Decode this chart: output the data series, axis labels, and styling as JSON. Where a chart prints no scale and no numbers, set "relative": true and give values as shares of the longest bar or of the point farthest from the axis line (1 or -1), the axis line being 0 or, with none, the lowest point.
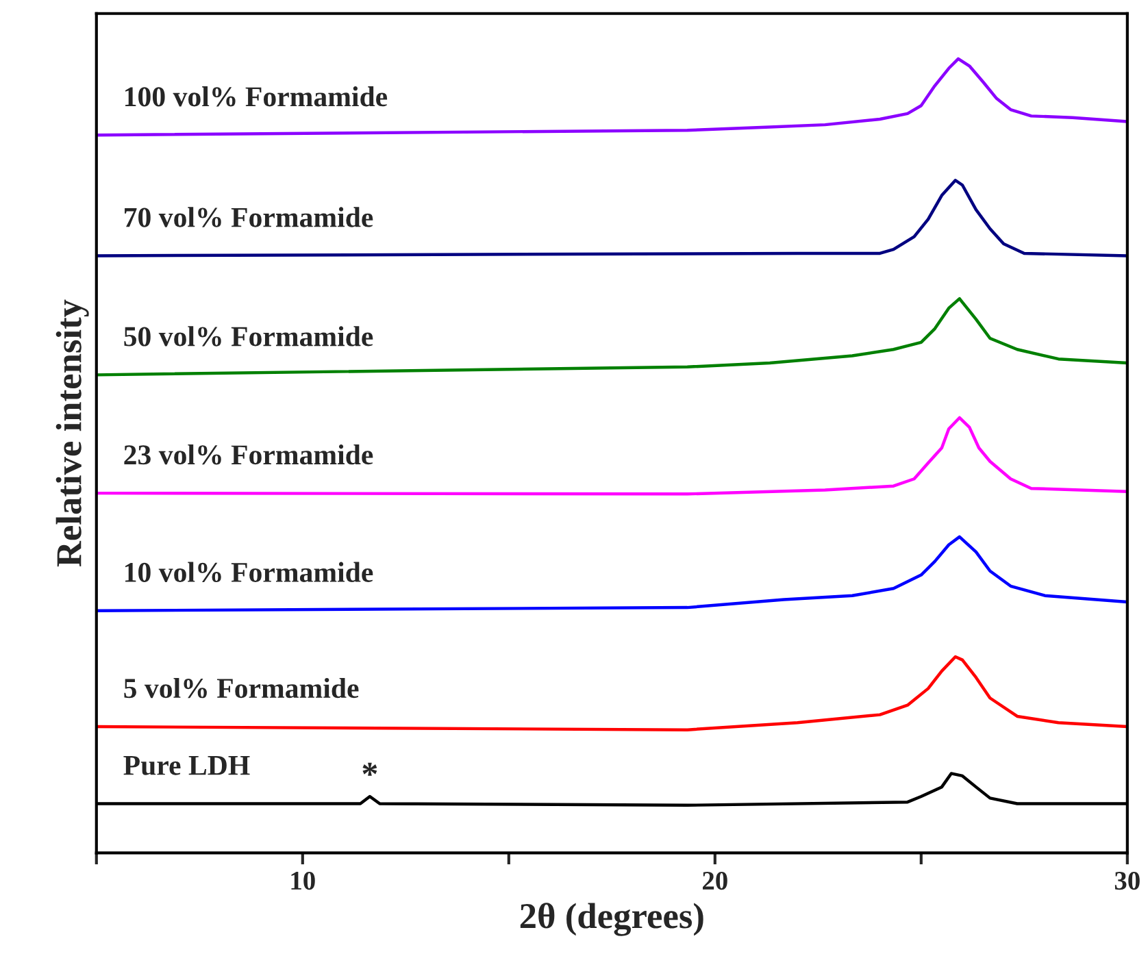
{
  "chart_data": {
    "type": "line",
    "relative": true,
    "xlabel": "2θ (degrees)",
    "ylabel": "Relative intensity",
    "xlim": [
      5,
      30
    ],
    "xticks": [
      {
        "value": 5,
        "label": null
      },
      10,
      {
        "value": 15,
        "label": null
      },
      20,
      {
        "value": 25,
        "label": null
      },
      30
    ],
    "tick_labels": "x",
    "grid": false,
    "legend": false,
    "marker": "none",
    "line_style": "solid",
    "annotations": [
      {
        "text": "*",
        "x": 11.63,
        "y": 0.071
      }
    ],
    "series": [
      {
        "name": "Pure LDH",
        "color": "#000000",
        "x": [
          5,
          11.4,
          11.63,
          11.87,
          19.33,
          24.67,
          25,
          25.5,
          25.73,
          26,
          26.33,
          26.67,
          27.33,
          30
        ],
        "values": [
          0.062,
          0.062,
          0.071,
          0.062,
          0.06,
          0.064,
          0.071,
          0.083,
          0.1,
          0.097,
          0.083,
          0.069,
          0.062,
          0.062
        ]
      },
      {
        "name": "5 vol% Formamide",
        "color": "#ff0000",
        "x": [
          5,
          19.33,
          22,
          24,
          24.67,
          25.17,
          25.5,
          25.83,
          26,
          26.33,
          26.67,
          27.33,
          28.33,
          30
        ],
        "values": [
          0.159,
          0.155,
          0.164,
          0.174,
          0.186,
          0.207,
          0.229,
          0.247,
          0.243,
          0.221,
          0.195,
          0.172,
          0.164,
          0.159
        ]
      },
      {
        "name": "10 vol% Formamide",
        "color": "#0000ff",
        "x": [
          5,
          19.33,
          21.67,
          23.33,
          24.33,
          25,
          25.33,
          25.67,
          25.93,
          26.33,
          26.67,
          27.17,
          28,
          30
        ],
        "values": [
          0.305,
          0.309,
          0.319,
          0.324,
          0.333,
          0.35,
          0.367,
          0.388,
          0.398,
          0.379,
          0.355,
          0.336,
          0.324,
          0.316
        ]
      },
      {
        "name": "23 vol% Formamide",
        "color": "#ff00ff",
        "x": [
          5,
          19.33,
          22.67,
          24.33,
          24.83,
          25.17,
          25.5,
          25.67,
          25.93,
          26.17,
          26.4,
          26.67,
          27.17,
          27.67,
          30
        ],
        "values": [
          0.453,
          0.452,
          0.457,
          0.462,
          0.471,
          0.491,
          0.51,
          0.534,
          0.548,
          0.536,
          0.51,
          0.493,
          0.471,
          0.459,
          0.455
        ]
      },
      {
        "name": "50 vol% Formamide",
        "color": "#008000",
        "x": [
          5,
          19.33,
          21.33,
          23.33,
          24.33,
          25,
          25.33,
          25.67,
          25.93,
          26.33,
          26.67,
          27.33,
          28.33,
          30
        ],
        "values": [
          0.602,
          0.612,
          0.617,
          0.626,
          0.634,
          0.643,
          0.66,
          0.686,
          0.698,
          0.672,
          0.648,
          0.634,
          0.622,
          0.617
        ]
      },
      {
        "name": "70 vol% Formamide",
        "color": "#000080",
        "x": [
          5,
          22,
          24,
          24.33,
          24.83,
          25.17,
          25.5,
          25.83,
          26,
          26.33,
          26.67,
          27,
          27.5,
          30
        ],
        "values": [
          0.752,
          0.755,
          0.755,
          0.76,
          0.776,
          0.798,
          0.828,
          0.847,
          0.841,
          0.81,
          0.786,
          0.767,
          0.755,
          0.752
        ]
      },
      {
        "name": "100 vol% Formamide",
        "color": "#8b00ff",
        "x": [
          5,
          19.33,
          21.33,
          22.67,
          24,
          24.67,
          25,
          25.33,
          25.67,
          25.9,
          26.17,
          26.5,
          26.83,
          27.17,
          27.67,
          28.67,
          30
        ],
        "values": [
          0.904,
          0.91,
          0.914,
          0.917,
          0.924,
          0.931,
          0.941,
          0.966,
          0.988,
          1.0,
          0.991,
          0.971,
          0.95,
          0.936,
          0.928,
          0.926,
          0.921
        ]
      }
    ]
  }
}
